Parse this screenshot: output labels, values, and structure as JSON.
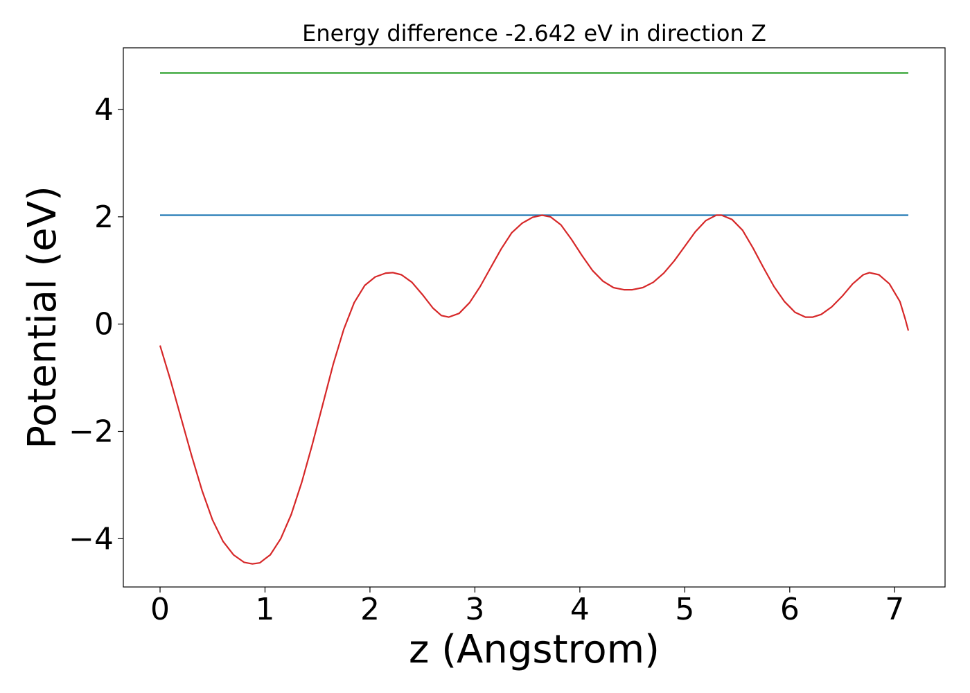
{
  "chart_data": {
    "type": "line",
    "title": "Energy difference -2.642 eV in direction Z",
    "xlabel": "z (Angstrom)",
    "ylabel": "Potential (eV)",
    "xlim": [
      -0.35,
      7.48
    ],
    "ylim": [
      -4.9,
      5.15
    ],
    "xticks": [
      0,
      1,
      2,
      3,
      4,
      5,
      6,
      7
    ],
    "yticks": [
      -4,
      -2,
      0,
      2,
      4
    ],
    "xtick_labels": [
      "0",
      "1",
      "2",
      "3",
      "4",
      "5",
      "6",
      "7"
    ],
    "ytick_labels": [
      "−4",
      "−2",
      "0",
      "2",
      "4"
    ],
    "grid": false,
    "legend": "none",
    "series": [
      {
        "color": "#d62728",
        "points": [
          [
            0.0,
            -0.4
          ],
          [
            0.1,
            -1.05
          ],
          [
            0.2,
            -1.75
          ],
          [
            0.3,
            -2.45
          ],
          [
            0.4,
            -3.1
          ],
          [
            0.5,
            -3.65
          ],
          [
            0.6,
            -4.05
          ],
          [
            0.7,
            -4.3
          ],
          [
            0.8,
            -4.44
          ],
          [
            0.88,
            -4.47
          ],
          [
            0.95,
            -4.45
          ],
          [
            1.05,
            -4.3
          ],
          [
            1.15,
            -4.0
          ],
          [
            1.25,
            -3.55
          ],
          [
            1.35,
            -2.95
          ],
          [
            1.45,
            -2.25
          ],
          [
            1.55,
            -1.5
          ],
          [
            1.65,
            -0.75
          ],
          [
            1.75,
            -0.1
          ],
          [
            1.85,
            0.4
          ],
          [
            1.95,
            0.72
          ],
          [
            2.05,
            0.88
          ],
          [
            2.15,
            0.95
          ],
          [
            2.22,
            0.96
          ],
          [
            2.3,
            0.92
          ],
          [
            2.4,
            0.78
          ],
          [
            2.5,
            0.55
          ],
          [
            2.6,
            0.3
          ],
          [
            2.68,
            0.16
          ],
          [
            2.75,
            0.13
          ],
          [
            2.85,
            0.2
          ],
          [
            2.95,
            0.4
          ],
          [
            3.05,
            0.7
          ],
          [
            3.15,
            1.05
          ],
          [
            3.25,
            1.4
          ],
          [
            3.35,
            1.7
          ],
          [
            3.45,
            1.88
          ],
          [
            3.55,
            1.99
          ],
          [
            3.64,
            2.03
          ],
          [
            3.72,
            2.0
          ],
          [
            3.82,
            1.85
          ],
          [
            3.92,
            1.58
          ],
          [
            4.02,
            1.28
          ],
          [
            4.12,
            1.0
          ],
          [
            4.22,
            0.8
          ],
          [
            4.32,
            0.68
          ],
          [
            4.42,
            0.64
          ],
          [
            4.5,
            0.64
          ],
          [
            4.6,
            0.68
          ],
          [
            4.7,
            0.78
          ],
          [
            4.8,
            0.95
          ],
          [
            4.9,
            1.18
          ],
          [
            5.0,
            1.45
          ],
          [
            5.1,
            1.72
          ],
          [
            5.2,
            1.93
          ],
          [
            5.3,
            2.03
          ],
          [
            5.35,
            2.03
          ],
          [
            5.45,
            1.95
          ],
          [
            5.55,
            1.75
          ],
          [
            5.65,
            1.42
          ],
          [
            5.75,
            1.05
          ],
          [
            5.85,
            0.7
          ],
          [
            5.95,
            0.42
          ],
          [
            6.05,
            0.22
          ],
          [
            6.15,
            0.13
          ],
          [
            6.22,
            0.13
          ],
          [
            6.3,
            0.18
          ],
          [
            6.4,
            0.32
          ],
          [
            6.5,
            0.52
          ],
          [
            6.6,
            0.75
          ],
          [
            6.7,
            0.92
          ],
          [
            6.76,
            0.96
          ],
          [
            6.85,
            0.92
          ],
          [
            6.95,
            0.75
          ],
          [
            7.05,
            0.42
          ],
          [
            7.1,
            0.1
          ],
          [
            7.13,
            -0.12
          ]
        ]
      },
      {
        "color": "#1f77b4",
        "points": [
          [
            0.0,
            2.03
          ],
          [
            7.13,
            2.03
          ]
        ]
      },
      {
        "color": "#2ca02c",
        "points": [
          [
            0.0,
            4.68
          ],
          [
            7.13,
            4.68
          ]
        ]
      }
    ]
  }
}
